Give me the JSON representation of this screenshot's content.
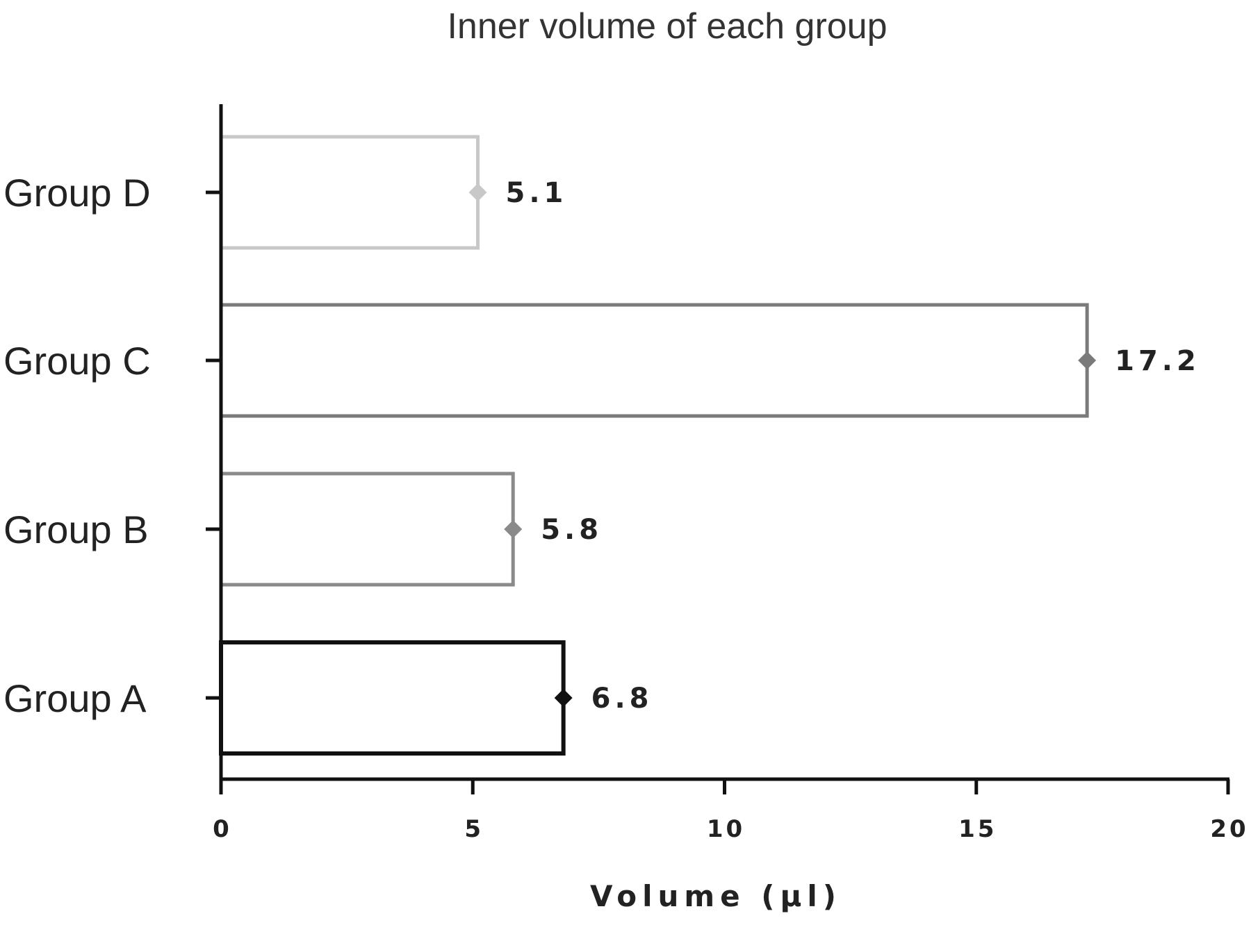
{
  "chart_data": {
    "type": "bar",
    "orientation": "horizontal",
    "title": "Inner volume of each group",
    "xlabel": "Volume (µl)",
    "ylabel": "",
    "xlim": [
      0,
      20
    ],
    "xticks": [
      0,
      5,
      10,
      15,
      20
    ],
    "categories": [
      "Group A",
      "Group B",
      "Group C",
      "Group D"
    ],
    "values": [
      6.8,
      5.8,
      17.2,
      5.1
    ],
    "value_labels": [
      "6.8",
      "5.8",
      "17.2",
      "5.1"
    ],
    "bar_outline_colors": [
      "#111111",
      "#8a8a8a",
      "#7a7a7a",
      "#c8c8c8"
    ],
    "marker": "diamond",
    "grid": false,
    "legend": "none"
  }
}
